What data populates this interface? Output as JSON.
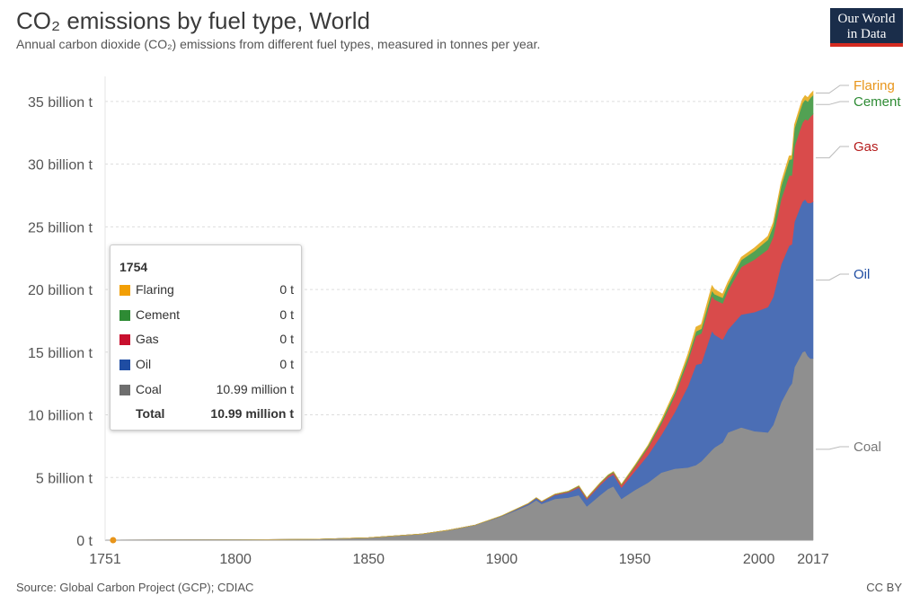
{
  "header": {
    "title": "CO₂ emissions by fuel type, World",
    "subtitle": "Annual carbon dioxide (CO₂) emissions from different fuel types, measured in tonnes per year."
  },
  "logo": {
    "line1": "Our World",
    "line2": "in Data",
    "bar_color": "#d42b21",
    "bg_color": "#1a2d4a"
  },
  "footer": {
    "source": "Source: Global Carbon Project (GCP); CDIAC",
    "license": "CC BY"
  },
  "tooltip": {
    "year": "1754",
    "rows": [
      {
        "label": "Flaring",
        "value": "0 t",
        "color": "#f29f05"
      },
      {
        "label": "Cement",
        "value": "0 t",
        "color": "#2e8b34"
      },
      {
        "label": "Gas",
        "value": "0 t",
        "color": "#c8102e"
      },
      {
        "label": "Oil",
        "value": "0 t",
        "color": "#1f4da3"
      },
      {
        "label": "Coal",
        "value": "10.99 million t",
        "color": "#6e6e6e"
      }
    ],
    "total_label": "Total",
    "total_value": "10.99 million t"
  },
  "chart_data": {
    "type": "area",
    "stacked": true,
    "x_ticks": [
      "1751",
      "1800",
      "1850",
      "1900",
      "1950",
      "2000",
      "2017"
    ],
    "y_ticks": [
      {
        "value": 0,
        "label": "0 t"
      },
      {
        "value": 5,
        "label": "5 billion t"
      },
      {
        "value": 10,
        "label": "10 billion t"
      },
      {
        "value": 15,
        "label": "15 billion t"
      },
      {
        "value": 20,
        "label": "20 billion t"
      },
      {
        "value": 25,
        "label": "25 billion t"
      },
      {
        "value": 30,
        "label": "30 billion t"
      },
      {
        "value": 35,
        "label": "35 billion t"
      }
    ],
    "x_range": [
      1751,
      2017
    ],
    "y_range": [
      0,
      35
    ],
    "y_unit": "billion t",
    "grid": "horizontal dashed",
    "legend_position": "right, end labels",
    "highlight_point": {
      "x": 1754,
      "y": 0
    },
    "x": [
      1751,
      1800,
      1830,
      1850,
      1870,
      1880,
      1890,
      1900,
      1910,
      1913,
      1915,
      1920,
      1925,
      1929,
      1932,
      1937,
      1940,
      1942,
      1945,
      1950,
      1955,
      1960,
      1965,
      1970,
      1973,
      1975,
      1979,
      1980,
      1983,
      1985,
      1990,
      1995,
      2000,
      2002,
      2005,
      2008,
      2009,
      2010,
      2012,
      2013,
      2014,
      2015,
      2016,
      2017
    ],
    "series": [
      {
        "name": "Coal",
        "color": "#8f8f8f",
        "label_color": "#777777",
        "values": [
          0.01,
          0.03,
          0.08,
          0.2,
          0.5,
          0.8,
          1.2,
          1.9,
          2.8,
          3.2,
          2.9,
          3.3,
          3.4,
          3.6,
          2.7,
          3.6,
          4.1,
          4.3,
          3.3,
          4.0,
          4.6,
          5.4,
          5.7,
          5.8,
          6.0,
          6.3,
          7.2,
          7.4,
          7.8,
          8.6,
          9.0,
          8.7,
          8.6,
          9.2,
          11.0,
          12.2,
          12.5,
          13.8,
          14.6,
          15.0,
          15.1,
          14.7,
          14.5,
          14.5
        ]
      },
      {
        "name": "Oil",
        "color": "#4b6eb5",
        "label_color": "#1f4da3",
        "values": [
          0,
          0,
          0,
          0,
          0,
          0,
          0.01,
          0.03,
          0.1,
          0.15,
          0.15,
          0.3,
          0.4,
          0.6,
          0.55,
          0.8,
          0.9,
          0.95,
          0.9,
          1.5,
          2.2,
          3.0,
          4.5,
          6.5,
          8.0,
          7.8,
          9.5,
          9.0,
          8.2,
          8.2,
          9.0,
          9.5,
          10.0,
          10.2,
          11.0,
          11.3,
          11.1,
          11.6,
          11.9,
          12.0,
          12.1,
          12.2,
          12.4,
          12.5
        ]
      },
      {
        "name": "Gas",
        "color": "#d94b4b",
        "label_color": "#b51c1c",
        "values": [
          0,
          0,
          0,
          0,
          0,
          0,
          0,
          0.01,
          0.02,
          0.03,
          0.03,
          0.05,
          0.07,
          0.1,
          0.1,
          0.12,
          0.14,
          0.15,
          0.2,
          0.35,
          0.6,
          0.9,
          1.3,
          2.0,
          2.3,
          2.4,
          2.8,
          2.8,
          2.9,
          3.1,
          3.8,
          4.2,
          4.6,
          4.8,
          5.2,
          5.6,
          5.5,
          6.0,
          6.2,
          6.3,
          6.4,
          6.6,
          6.9,
          7.0
        ]
      },
      {
        "name": "Cement",
        "color": "#52a153",
        "label_color": "#2e8b34",
        "values": [
          0,
          0,
          0,
          0,
          0,
          0,
          0,
          0.01,
          0.02,
          0.02,
          0.02,
          0.03,
          0.04,
          0.05,
          0.04,
          0.06,
          0.07,
          0.07,
          0.06,
          0.1,
          0.14,
          0.2,
          0.26,
          0.32,
          0.36,
          0.37,
          0.42,
          0.43,
          0.44,
          0.46,
          0.55,
          0.68,
          0.77,
          0.85,
          1.05,
          1.25,
          1.3,
          1.45,
          1.52,
          1.55,
          1.56,
          1.5,
          1.5,
          1.51
        ]
      },
      {
        "name": "Flaring",
        "color": "#e8b332",
        "label_color": "#e8951a",
        "values": [
          0,
          0,
          0,
          0,
          0,
          0,
          0,
          0,
          0,
          0,
          0,
          0,
          0,
          0,
          0,
          0,
          0,
          0,
          0,
          0.03,
          0.05,
          0.1,
          0.15,
          0.25,
          0.35,
          0.35,
          0.4,
          0.38,
          0.3,
          0.25,
          0.22,
          0.25,
          0.28,
          0.28,
          0.3,
          0.3,
          0.3,
          0.3,
          0.32,
          0.32,
          0.32,
          0.31,
          0.31,
          0.32
        ]
      }
    ]
  }
}
